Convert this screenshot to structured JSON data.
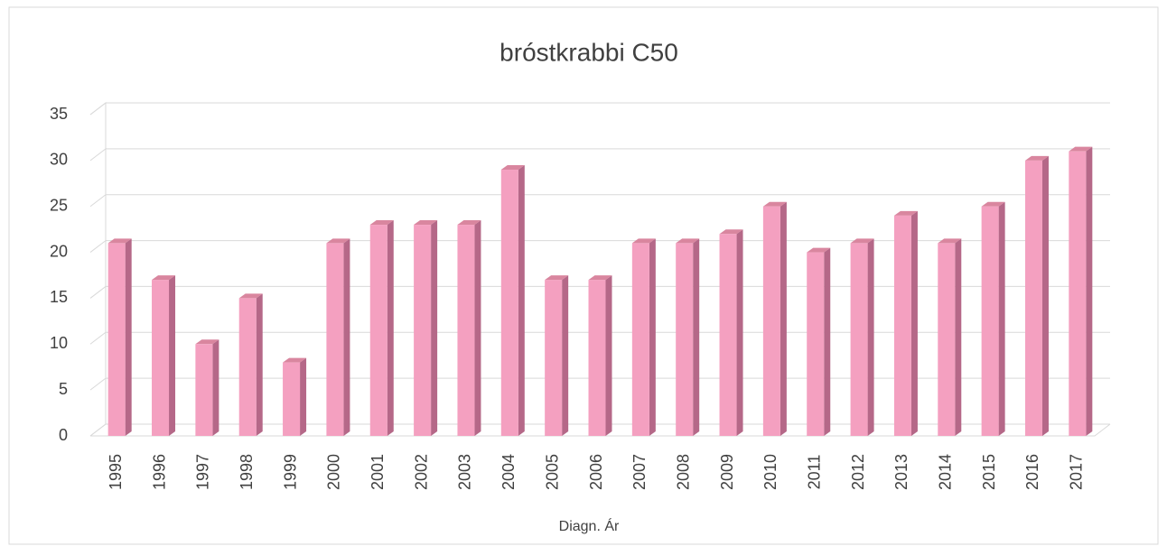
{
  "chart_data": {
    "type": "bar3d",
    "title": "bróstkrabbi C50",
    "x_label": "Diagn. Ár",
    "categories": [
      "1995",
      "1996",
      "1997",
      "1998",
      "1999",
      "2000",
      "2001",
      "2002",
      "2003",
      "2004",
      "2005",
      "2006",
      "2007",
      "2008",
      "2009",
      "2010",
      "2011",
      "2012",
      "2013",
      "2014",
      "2015",
      "2016",
      "2017"
    ],
    "values": [
      21,
      17,
      10,
      15,
      8,
      21,
      23,
      23,
      23,
      29,
      17,
      17,
      21,
      21,
      22,
      25,
      20,
      21,
      24,
      21,
      25,
      30,
      31
    ],
    "color": "#f4a0c0",
    "ylim": [
      0,
      35
    ],
    "yticks": [
      0,
      5,
      10,
      15,
      20,
      25,
      30,
      35
    ],
    "grid": true
  }
}
